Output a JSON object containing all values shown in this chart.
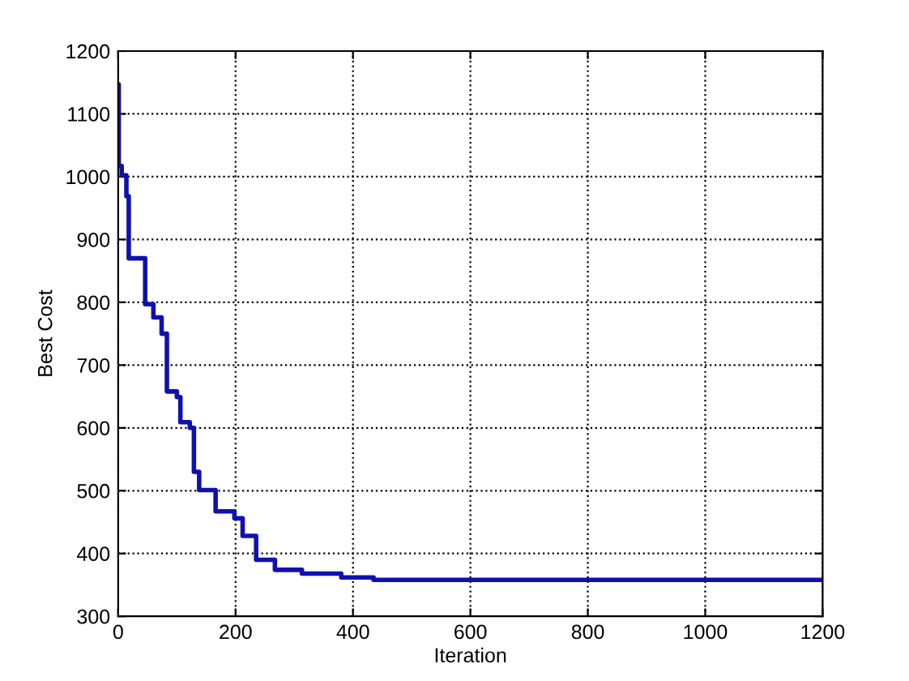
{
  "chart_data": {
    "type": "step",
    "xlabel": "Iteration",
    "ylabel": "Best Cost",
    "series": [
      {
        "color": "#1010b0",
        "x": [
          0,
          1,
          6,
          14,
          18,
          46,
          60,
          74,
          83,
          100,
          106,
          122,
          129,
          138,
          166,
          198,
          212,
          235,
          267,
          313,
          380,
          435,
          1200
        ],
        "values": [
          1147,
          1017,
          1002,
          969,
          870,
          797,
          776,
          750,
          658,
          649,
          609,
          600,
          530,
          501,
          467,
          456,
          428,
          390,
          374,
          368,
          362,
          358,
          358
        ]
      }
    ],
    "xlim": [
      0,
      1200
    ],
    "xticks": [
      0,
      200,
      400,
      600,
      800,
      1000,
      1200
    ],
    "ylim": [
      300,
      1200
    ],
    "yticks": [
      300,
      400,
      500,
      600,
      700,
      800,
      900,
      1000,
      1100,
      1200
    ],
    "grid": true,
    "line_style": "solid"
  }
}
